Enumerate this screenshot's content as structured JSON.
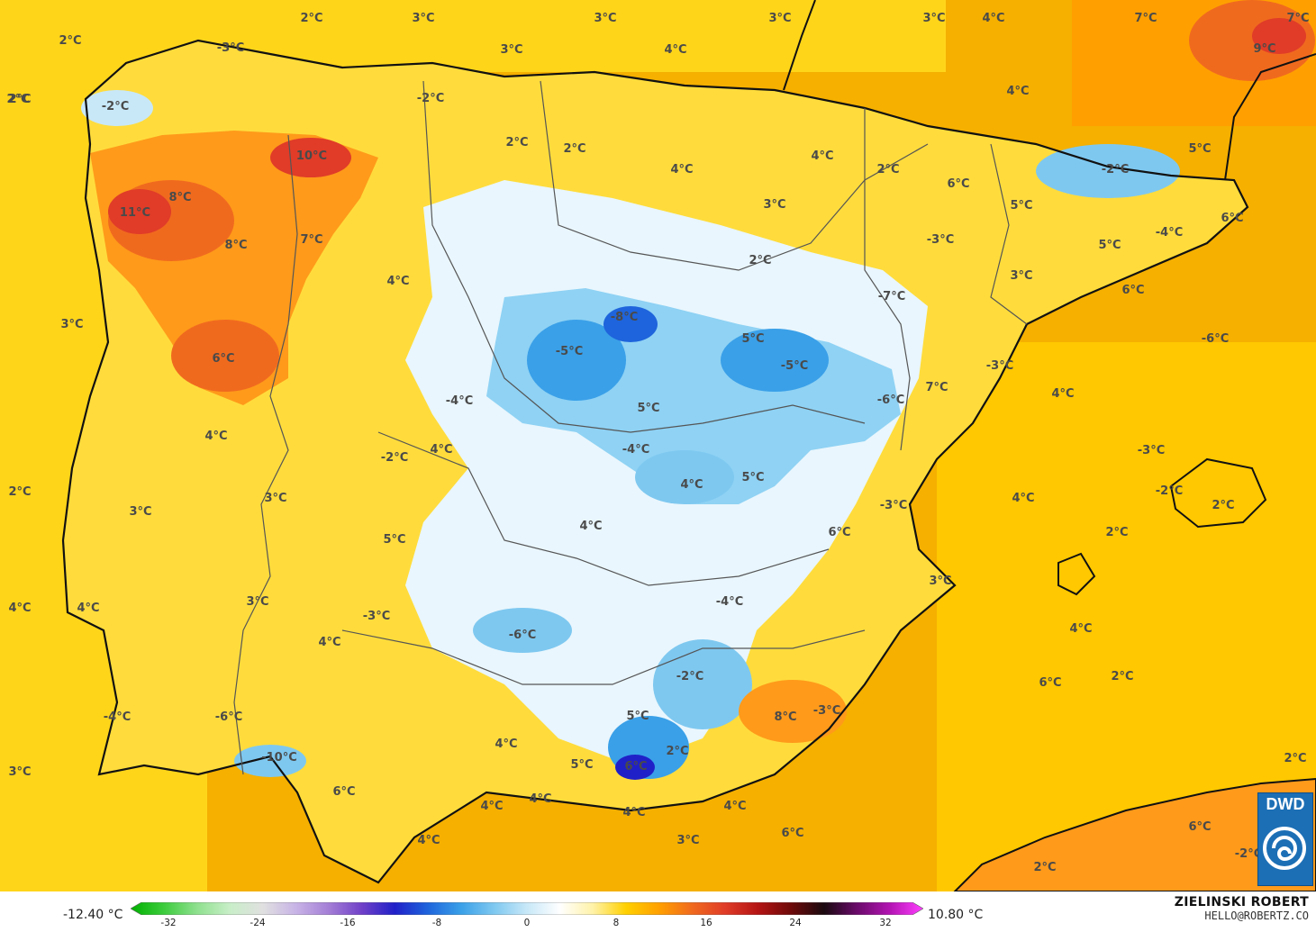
{
  "legend": {
    "min_label": "-12.40 °C",
    "max_label": "10.80 °C",
    "ticks": [
      "-32",
      "-24",
      "-16",
      "-8",
      "0",
      "8",
      "16",
      "24",
      "32"
    ],
    "ramp_colors": [
      "#00b000",
      "#3ccc3c",
      "#8ee08e",
      "#c8eec8",
      "#e0e0e0",
      "#c8b4e6",
      "#a47ed6",
      "#7040c8",
      "#2020c8",
      "#1e64dc",
      "#3aa0e8",
      "#7ec8f0",
      "#c8e8f8",
      "#ffffff",
      "#fff2a8",
      "#ffd000",
      "#ffa000",
      "#f06a1e",
      "#e03c28",
      "#b41414",
      "#6e0a0a",
      "#1a0a10",
      "#6a0a6a",
      "#b414b4",
      "#ff40ff"
    ]
  },
  "credit": {
    "name": "ZIELINSKI ROBERT",
    "email": "HELLO@ROBERTZ.CO"
  },
  "logo": {
    "text": "DWD"
  },
  "temperature_labels": [
    "2°C",
    "2°C",
    "3°C",
    "3°C",
    "3°C",
    "3°C",
    "4°C",
    "7°C",
    "7°C",
    "9°C",
    "2°C",
    "-3°C",
    "3°C",
    "4°C",
    "2°C",
    "-2°C",
    "-2°C",
    "2°C",
    "2°C",
    "10°C",
    "4°C",
    "4°C",
    "4°C",
    "2°C",
    "5°C",
    "-2°C",
    "8°C",
    "11°C",
    "6°C",
    "5°C",
    "3°C",
    "-3°C",
    "6°C",
    "8°C",
    "7°C",
    "5°C",
    "-4°C",
    "4°C",
    "2°C",
    "3°C",
    "6°C",
    "3°C",
    "-7°C",
    "-8°C",
    "-5°C",
    "5°C",
    "-6°C",
    "6°C",
    "-5°C",
    "-3°C",
    "7°C",
    "4°C",
    "-6°C",
    "-4°C",
    "5°C",
    "4°C",
    "-4°C",
    "4°C",
    "-3°C",
    "-2°C",
    "5°C",
    "4°C",
    "2°C",
    "3°C",
    "-2°C",
    "4°C",
    "-3°C",
    "2°C",
    "3°C",
    "4°C",
    "6°C",
    "2°C",
    "5°C",
    "3°C",
    "3°C",
    "-4°C",
    "4°C",
    "4°C",
    "-3°C",
    "4°C",
    "-6°C",
    "4°C",
    "-2°C",
    "2°C",
    "6°C",
    "8°C",
    "-3°C",
    "5°C",
    "-4°C",
    "-6°C",
    "4°C",
    "-10°C",
    "2°C",
    "2°C",
    "5°C",
    "6°C",
    "3°C",
    "6°C",
    "4°C",
    "4°C",
    "4°C",
    "4°C",
    "6°C",
    "6°C",
    "4°C",
    "3°C",
    "-2°C",
    "2°C"
  ]
}
